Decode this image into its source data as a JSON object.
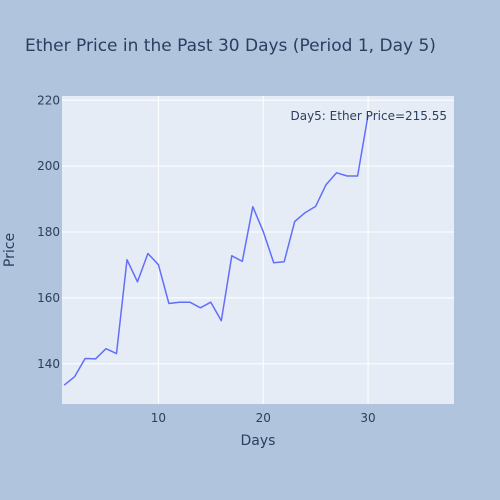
{
  "chart_data": {
    "type": "line",
    "title": "Ether Price in the Past 30 Days (Period 1, Day 5)",
    "xlabel": "Days",
    "ylabel": "Price",
    "xlim": [
      0.8,
      38.2
    ],
    "ylim": [
      127.8,
      221.3
    ],
    "grid": true,
    "x_ticks": [
      10,
      20,
      30
    ],
    "y_ticks": [
      140,
      160,
      180,
      200,
      220
    ],
    "series": [
      {
        "color": "#636efa",
        "x": [
          1,
          2,
          3,
          4,
          5,
          6,
          7,
          8,
          9,
          10,
          11,
          12,
          13,
          14,
          15,
          16,
          17,
          18,
          19,
          20,
          21,
          22,
          23,
          24,
          25,
          26,
          27,
          28,
          29,
          30
        ],
        "y": [
          133.5,
          136.1,
          141.6,
          141.5,
          144.6,
          143.1,
          171.6,
          164.9,
          173.5,
          170.1,
          158.3,
          158.7,
          158.7,
          157.0,
          158.7,
          153.1,
          172.8,
          171.1,
          187.7,
          180.2,
          170.7,
          171.0,
          183.2,
          185.9,
          187.8,
          194.4,
          198.0,
          197.0,
          197.0,
          215.55
        ]
      }
    ],
    "annotation": {
      "text": "Day5: Ether Price=215.55",
      "x": 30,
      "y": 215.55
    }
  },
  "colors": {
    "paper_bg": "#b0c4de",
    "plot_bg": "#e5ecf6",
    "grid": "#ffffff",
    "text": "#2a3f5f"
  }
}
